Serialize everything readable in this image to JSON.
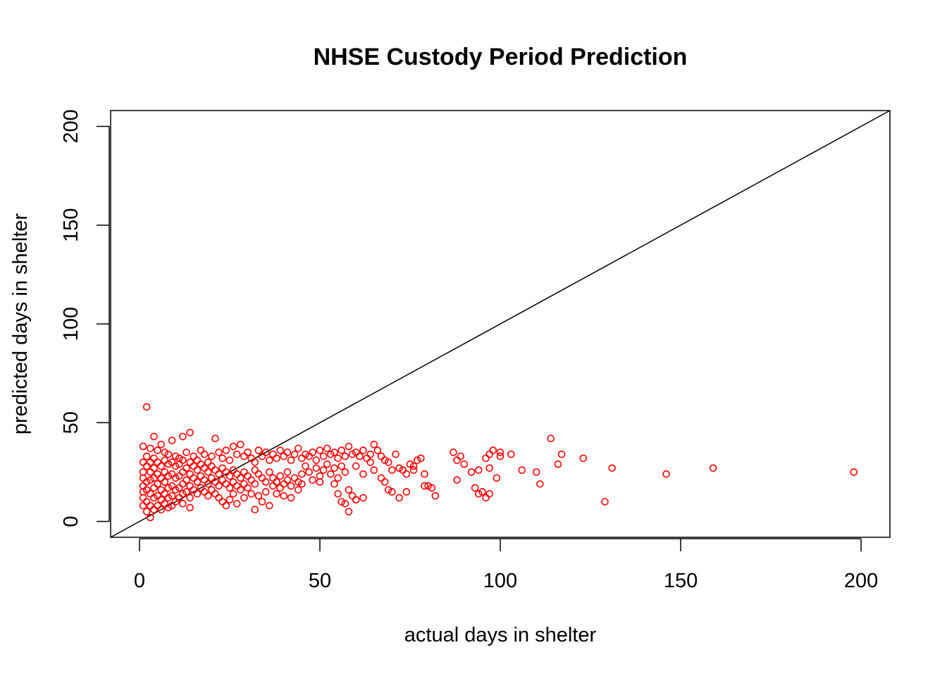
{
  "chart_data": {
    "type": "scatter",
    "title": "NHSE Custody Period Prediction",
    "xlabel": "actual days in shelter",
    "ylabel": "predicted days in shelter",
    "xlim": [
      -8,
      208
    ],
    "ylim": [
      -8,
      208
    ],
    "xticks": [
      0,
      50,
      100,
      150,
      200
    ],
    "yticks": [
      0,
      50,
      100,
      150,
      200
    ],
    "point_color": "#ff0000",
    "line_color": "#000000",
    "reference_line": {
      "intercept": 0,
      "slope": 1
    },
    "points": [
      [
        2,
        58
      ],
      [
        4,
        43
      ],
      [
        14,
        45
      ],
      [
        12,
        43
      ],
      [
        21,
        42
      ],
      [
        9,
        41
      ],
      [
        6,
        39
      ],
      [
        28,
        39
      ],
      [
        1,
        38
      ],
      [
        3,
        37
      ],
      [
        5,
        36
      ],
      [
        7,
        35
      ],
      [
        8,
        34
      ],
      [
        10,
        33
      ],
      [
        11,
        32
      ],
      [
        13,
        35
      ],
      [
        15,
        33
      ],
      [
        16,
        31
      ],
      [
        17,
        36
      ],
      [
        18,
        34
      ],
      [
        19,
        30
      ],
      [
        20,
        33
      ],
      [
        22,
        35
      ],
      [
        23,
        32
      ],
      [
        24,
        36
      ],
      [
        25,
        31
      ],
      [
        26,
        38
      ],
      [
        27,
        34
      ],
      [
        29,
        33
      ],
      [
        30,
        35
      ],
      [
        31,
        32
      ],
      [
        32,
        30
      ],
      [
        33,
        36
      ],
      [
        34,
        33
      ],
      [
        35,
        35
      ],
      [
        36,
        31
      ],
      [
        37,
        34
      ],
      [
        38,
        32
      ],
      [
        39,
        36
      ],
      [
        40,
        33
      ],
      [
        41,
        35
      ],
      [
        42,
        31
      ],
      [
        43,
        34
      ],
      [
        44,
        37
      ],
      [
        45,
        32
      ],
      [
        46,
        34
      ],
      [
        47,
        33
      ],
      [
        48,
        35
      ],
      [
        49,
        31
      ],
      [
        50,
        36
      ],
      [
        51,
        33
      ],
      [
        52,
        37
      ],
      [
        53,
        34
      ],
      [
        54,
        35
      ],
      [
        55,
        32
      ],
      [
        56,
        36
      ],
      [
        57,
        33
      ],
      [
        58,
        38
      ],
      [
        59,
        34
      ],
      [
        60,
        35
      ],
      [
        61,
        33
      ],
      [
        62,
        36
      ],
      [
        63,
        32
      ],
      [
        64,
        34
      ],
      [
        65,
        39
      ],
      [
        66,
        36
      ],
      [
        67,
        33
      ],
      [
        68,
        31
      ],
      [
        69,
        30
      ],
      [
        70,
        26
      ],
      [
        71,
        34
      ],
      [
        72,
        27
      ],
      [
        73,
        26
      ],
      [
        74,
        24
      ],
      [
        75,
        29
      ],
      [
        76,
        28
      ],
      [
        77,
        31
      ],
      [
        78,
        32
      ],
      [
        1,
        30
      ],
      [
        1,
        25
      ],
      [
        1,
        22
      ],
      [
        1,
        18
      ],
      [
        1,
        15
      ],
      [
        1,
        12
      ],
      [
        1,
        8
      ],
      [
        2,
        33
      ],
      [
        2,
        28
      ],
      [
        2,
        20
      ],
      [
        2,
        16
      ],
      [
        2,
        10
      ],
      [
        2,
        5
      ],
      [
        3,
        30
      ],
      [
        3,
        25
      ],
      [
        3,
        21
      ],
      [
        3,
        14
      ],
      [
        3,
        8
      ],
      [
        3,
        2
      ],
      [
        4,
        32
      ],
      [
        4,
        27
      ],
      [
        4,
        22
      ],
      [
        4,
        17
      ],
      [
        4,
        12
      ],
      [
        4,
        6
      ],
      [
        5,
        30
      ],
      [
        5,
        24
      ],
      [
        5,
        19
      ],
      [
        5,
        13
      ],
      [
        5,
        8
      ],
      [
        6,
        28
      ],
      [
        6,
        22
      ],
      [
        6,
        16
      ],
      [
        6,
        11
      ],
      [
        6,
        6
      ],
      [
        7,
        31
      ],
      [
        7,
        25
      ],
      [
        7,
        20
      ],
      [
        7,
        14
      ],
      [
        7,
        9
      ],
      [
        8,
        29
      ],
      [
        8,
        23
      ],
      [
        8,
        17
      ],
      [
        8,
        12
      ],
      [
        8,
        7
      ],
      [
        9,
        30
      ],
      [
        9,
        24
      ],
      [
        9,
        18
      ],
      [
        9,
        13
      ],
      [
        9,
        8
      ],
      [
        10,
        28
      ],
      [
        10,
        22
      ],
      [
        10,
        16
      ],
      [
        10,
        10
      ],
      [
        11,
        29
      ],
      [
        11,
        23
      ],
      [
        11,
        17
      ],
      [
        11,
        12
      ],
      [
        12,
        31
      ],
      [
        12,
        25
      ],
      [
        12,
        19
      ],
      [
        12,
        14
      ],
      [
        12,
        9
      ],
      [
        13,
        27
      ],
      [
        13,
        21
      ],
      [
        13,
        15
      ],
      [
        14,
        30
      ],
      [
        14,
        24
      ],
      [
        14,
        18
      ],
      [
        14,
        12
      ],
      [
        14,
        7
      ],
      [
        15,
        28
      ],
      [
        15,
        22
      ],
      [
        15,
        16
      ],
      [
        16,
        26
      ],
      [
        16,
        20
      ],
      [
        16,
        14
      ],
      [
        17,
        29
      ],
      [
        17,
        23
      ],
      [
        17,
        17
      ],
      [
        18,
        27
      ],
      [
        18,
        21
      ],
      [
        18,
        15
      ],
      [
        19,
        25
      ],
      [
        19,
        19
      ],
      [
        19,
        13
      ],
      [
        20,
        28
      ],
      [
        20,
        22
      ],
      [
        20,
        16
      ],
      [
        21,
        26
      ],
      [
        21,
        20
      ],
      [
        21,
        14
      ],
      [
        22,
        24
      ],
      [
        22,
        18
      ],
      [
        22,
        12
      ],
      [
        23,
        27
      ],
      [
        23,
        21
      ],
      [
        23,
        10
      ],
      [
        24,
        25
      ],
      [
        24,
        19
      ],
      [
        24,
        8
      ],
      [
        25,
        23
      ],
      [
        25,
        17
      ],
      [
        25,
        11
      ],
      [
        26,
        26
      ],
      [
        26,
        20
      ],
      [
        26,
        14
      ],
      [
        27,
        24
      ],
      [
        27,
        18
      ],
      [
        27,
        9
      ],
      [
        28,
        22
      ],
      [
        28,
        16
      ],
      [
        29,
        25
      ],
      [
        29,
        19
      ],
      [
        29,
        12
      ],
      [
        30,
        23
      ],
      [
        30,
        17
      ],
      [
        31,
        21
      ],
      [
        31,
        14
      ],
      [
        32,
        26
      ],
      [
        32,
        19
      ],
      [
        32,
        6
      ],
      [
        33,
        24
      ],
      [
        33,
        13
      ],
      [
        34,
        22
      ],
      [
        34,
        10
      ],
      [
        35,
        20
      ],
      [
        35,
        15
      ],
      [
        36,
        25
      ],
      [
        36,
        8
      ],
      [
        37,
        18
      ],
      [
        37,
        22
      ],
      [
        38,
        20
      ],
      [
        38,
        14
      ],
      [
        39,
        23
      ],
      [
        39,
        17
      ],
      [
        40,
        19
      ],
      [
        40,
        13
      ],
      [
        41,
        25
      ],
      [
        41,
        21
      ],
      [
        42,
        18
      ],
      [
        42,
        12
      ],
      [
        43,
        22
      ],
      [
        44,
        20
      ],
      [
        44,
        16
      ],
      [
        45,
        24
      ],
      [
        45,
        19
      ],
      [
        46,
        28
      ],
      [
        47,
        25
      ],
      [
        48,
        21
      ],
      [
        49,
        27
      ],
      [
        50,
        23
      ],
      [
        50,
        20
      ],
      [
        51,
        26
      ],
      [
        52,
        29
      ],
      [
        53,
        24
      ],
      [
        54,
        27
      ],
      [
        54,
        19
      ],
      [
        55,
        22
      ],
      [
        55,
        14
      ],
      [
        56,
        28
      ],
      [
        56,
        10
      ],
      [
        57,
        25
      ],
      [
        57,
        9
      ],
      [
        58,
        5
      ],
      [
        58,
        16
      ],
      [
        59,
        13
      ],
      [
        60,
        11
      ],
      [
        60,
        28
      ],
      [
        62,
        12
      ],
      [
        62,
        24
      ],
      [
        64,
        30
      ],
      [
        65,
        26
      ],
      [
        67,
        22
      ],
      [
        68,
        20
      ],
      [
        69,
        16
      ],
      [
        70,
        15
      ],
      [
        72,
        12
      ],
      [
        74,
        15
      ],
      [
        76,
        26
      ],
      [
        79,
        24
      ],
      [
        79,
        18
      ],
      [
        80,
        18
      ],
      [
        81,
        17
      ],
      [
        82,
        13
      ],
      [
        87,
        35
      ],
      [
        88,
        31
      ],
      [
        88,
        21
      ],
      [
        89,
        33
      ],
      [
        90,
        29
      ],
      [
        92,
        25
      ],
      [
        93,
        17
      ],
      [
        94,
        26
      ],
      [
        94,
        14
      ],
      [
        95,
        15
      ],
      [
        96,
        12
      ],
      [
        96,
        32
      ],
      [
        97,
        14
      ],
      [
        97,
        27
      ],
      [
        97,
        34
      ],
      [
        98,
        36
      ],
      [
        99,
        22
      ],
      [
        100,
        33
      ],
      [
        100,
        35
      ],
      [
        103,
        34
      ],
      [
        106,
        26
      ],
      [
        110,
        25
      ],
      [
        111,
        19
      ],
      [
        114,
        42
      ],
      [
        116,
        29
      ],
      [
        117,
        34
      ],
      [
        123,
        32
      ],
      [
        129,
        10
      ],
      [
        131,
        27
      ],
      [
        146,
        24
      ],
      [
        159,
        27
      ],
      [
        198,
        25
      ]
    ]
  }
}
